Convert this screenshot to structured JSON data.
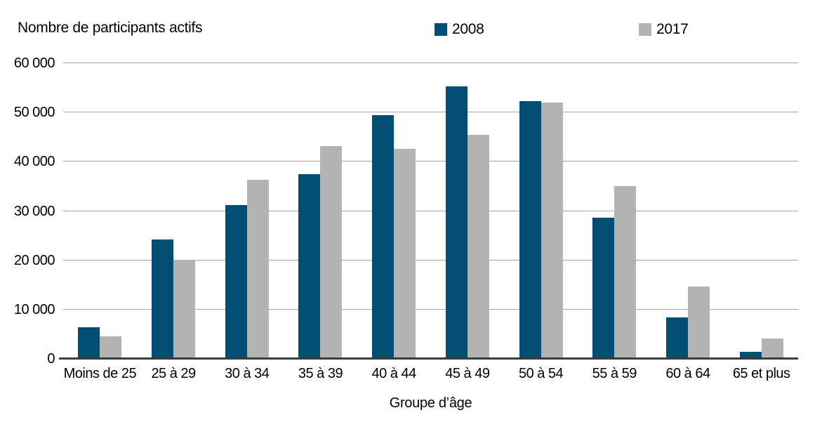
{
  "chart": {
    "title": "Nombre de participants actifs",
    "x_axis_title": "Groupe d’âge",
    "legend": [
      {
        "label": "2008",
        "color": "#004F72"
      },
      {
        "label": "2017",
        "color": "#B3B3B3"
      }
    ]
  },
  "chart_data": {
    "type": "bar",
    "title": "Nombre de participants actifs",
    "xlabel": "Groupe d’âge",
    "ylabel": "Nombre de participants actifs",
    "categories": [
      "Moins de 25",
      "25 à 29",
      "30 à 34",
      "35 à 39",
      "40 à 44",
      "45 à 49",
      "50 à 54",
      "55 à 59",
      "60 à 64",
      "65 et plus"
    ],
    "series": [
      {
        "name": "2008",
        "color": "#004F72",
        "values": [
          6400,
          24200,
          31200,
          37500,
          49500,
          55300,
          52300,
          28700,
          8400,
          1400
        ]
      },
      {
        "name": "2017",
        "color": "#B3B3B3",
        "values": [
          4500,
          20100,
          36300,
          43200,
          42600,
          45400,
          52000,
          35100,
          14700,
          4200
        ]
      }
    ],
    "ylim": [
      0,
      60000
    ],
    "yticks": [
      0,
      10000,
      20000,
      30000,
      40000,
      50000,
      60000
    ],
    "ytick_labels": [
      "0",
      "10 000",
      "20 000",
      "30 000",
      "40 000",
      "50 000",
      "60 000"
    ],
    "grid": true,
    "legend_position": "top"
  },
  "colors": {
    "grid": "#A6A6A6",
    "axis": "#3C3C3C",
    "text": "#000000",
    "background": "#FFFFFF"
  }
}
